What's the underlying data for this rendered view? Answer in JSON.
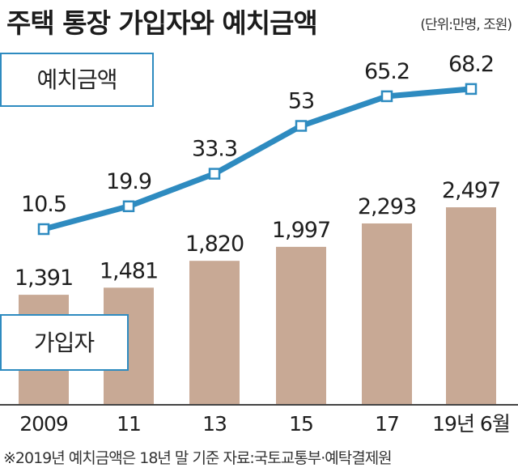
{
  "title": "주택 통장 가입자와 예치금액",
  "unit_note": "(단위:만명, 조원)",
  "footnote": "※2019년 예치금액은 18년 말 기준 자료:국토교통부·예탁결제원",
  "colors": {
    "bar": "#c8a995",
    "line": "#2e8bc0",
    "axis": "#444444",
    "box": "#2e8bc0"
  },
  "chart_data": {
    "type": "bar",
    "categories": [
      "2009",
      "11",
      "13",
      "15",
      "17",
      "19년 6월"
    ],
    "series": [
      {
        "name": "가입자",
        "type": "bar",
        "values": [
          1391,
          1481,
          1820,
          1997,
          2293,
          2497
        ],
        "labels": [
          "1,391",
          "1,481",
          "1,820",
          "1,997",
          "2,293",
          "2,497"
        ]
      },
      {
        "name": "예치금액",
        "type": "line",
        "values": [
          10.5,
          19.9,
          33.3,
          53,
          65.2,
          68.2
        ],
        "labels": [
          "10.5",
          "19.9",
          "33.3",
          "53",
          "65.2",
          "68.2"
        ]
      }
    ]
  }
}
